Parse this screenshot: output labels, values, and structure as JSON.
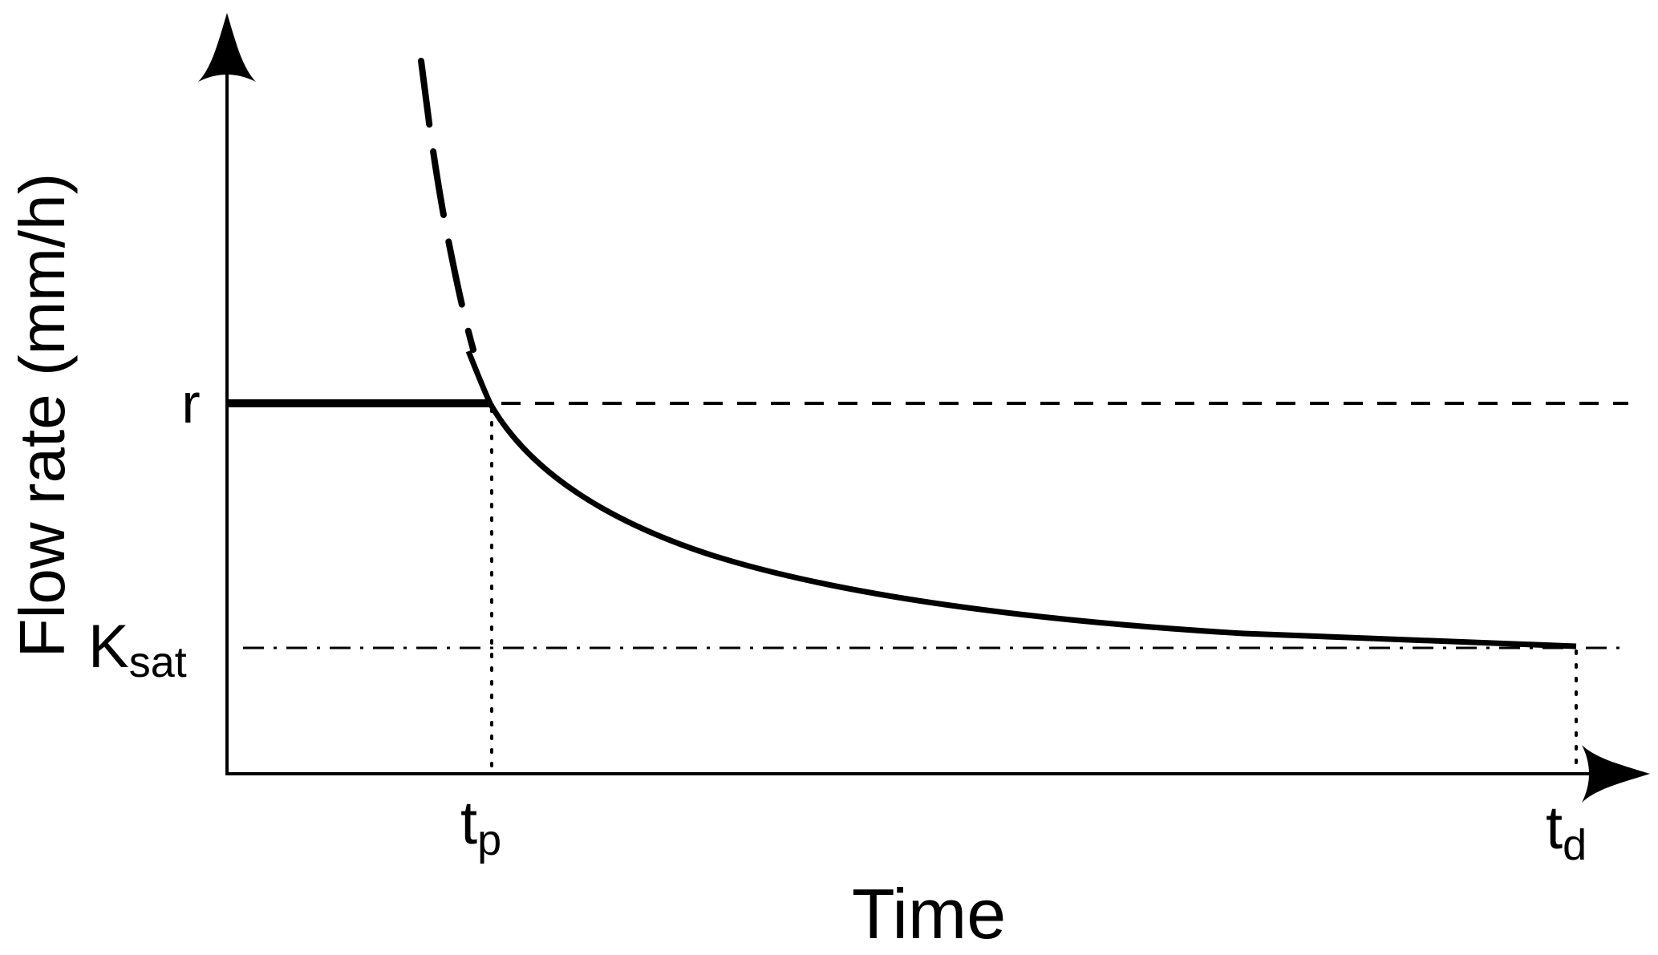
{
  "diagram": {
    "axis_titles": {
      "x": "Time",
      "y": "Flow rate (mm/h)"
    },
    "y_markers": [
      {
        "id": "rain",
        "base": "r",
        "sub": ""
      },
      {
        "id": "ksat",
        "base": "K",
        "sub": "sat"
      }
    ],
    "x_markers": [
      {
        "id": "ponding",
        "base": "t",
        "sub": "p"
      },
      {
        "id": "duration",
        "base": "t",
        "sub": "d"
      }
    ],
    "curves": [
      {
        "id": "rainfall-rate",
        "style": "solid"
      },
      {
        "id": "infiltration-capacity",
        "style": "dashed-then-solid"
      },
      {
        "id": "rain-reference",
        "style": "dashed"
      },
      {
        "id": "ksat-reference",
        "style": "dash-dot"
      },
      {
        "id": "tp-guide",
        "style": "dotted"
      },
      {
        "id": "td-guide",
        "style": "dotted"
      }
    ],
    "colors": {
      "ink": "#000000",
      "background": "#ffffff"
    }
  }
}
